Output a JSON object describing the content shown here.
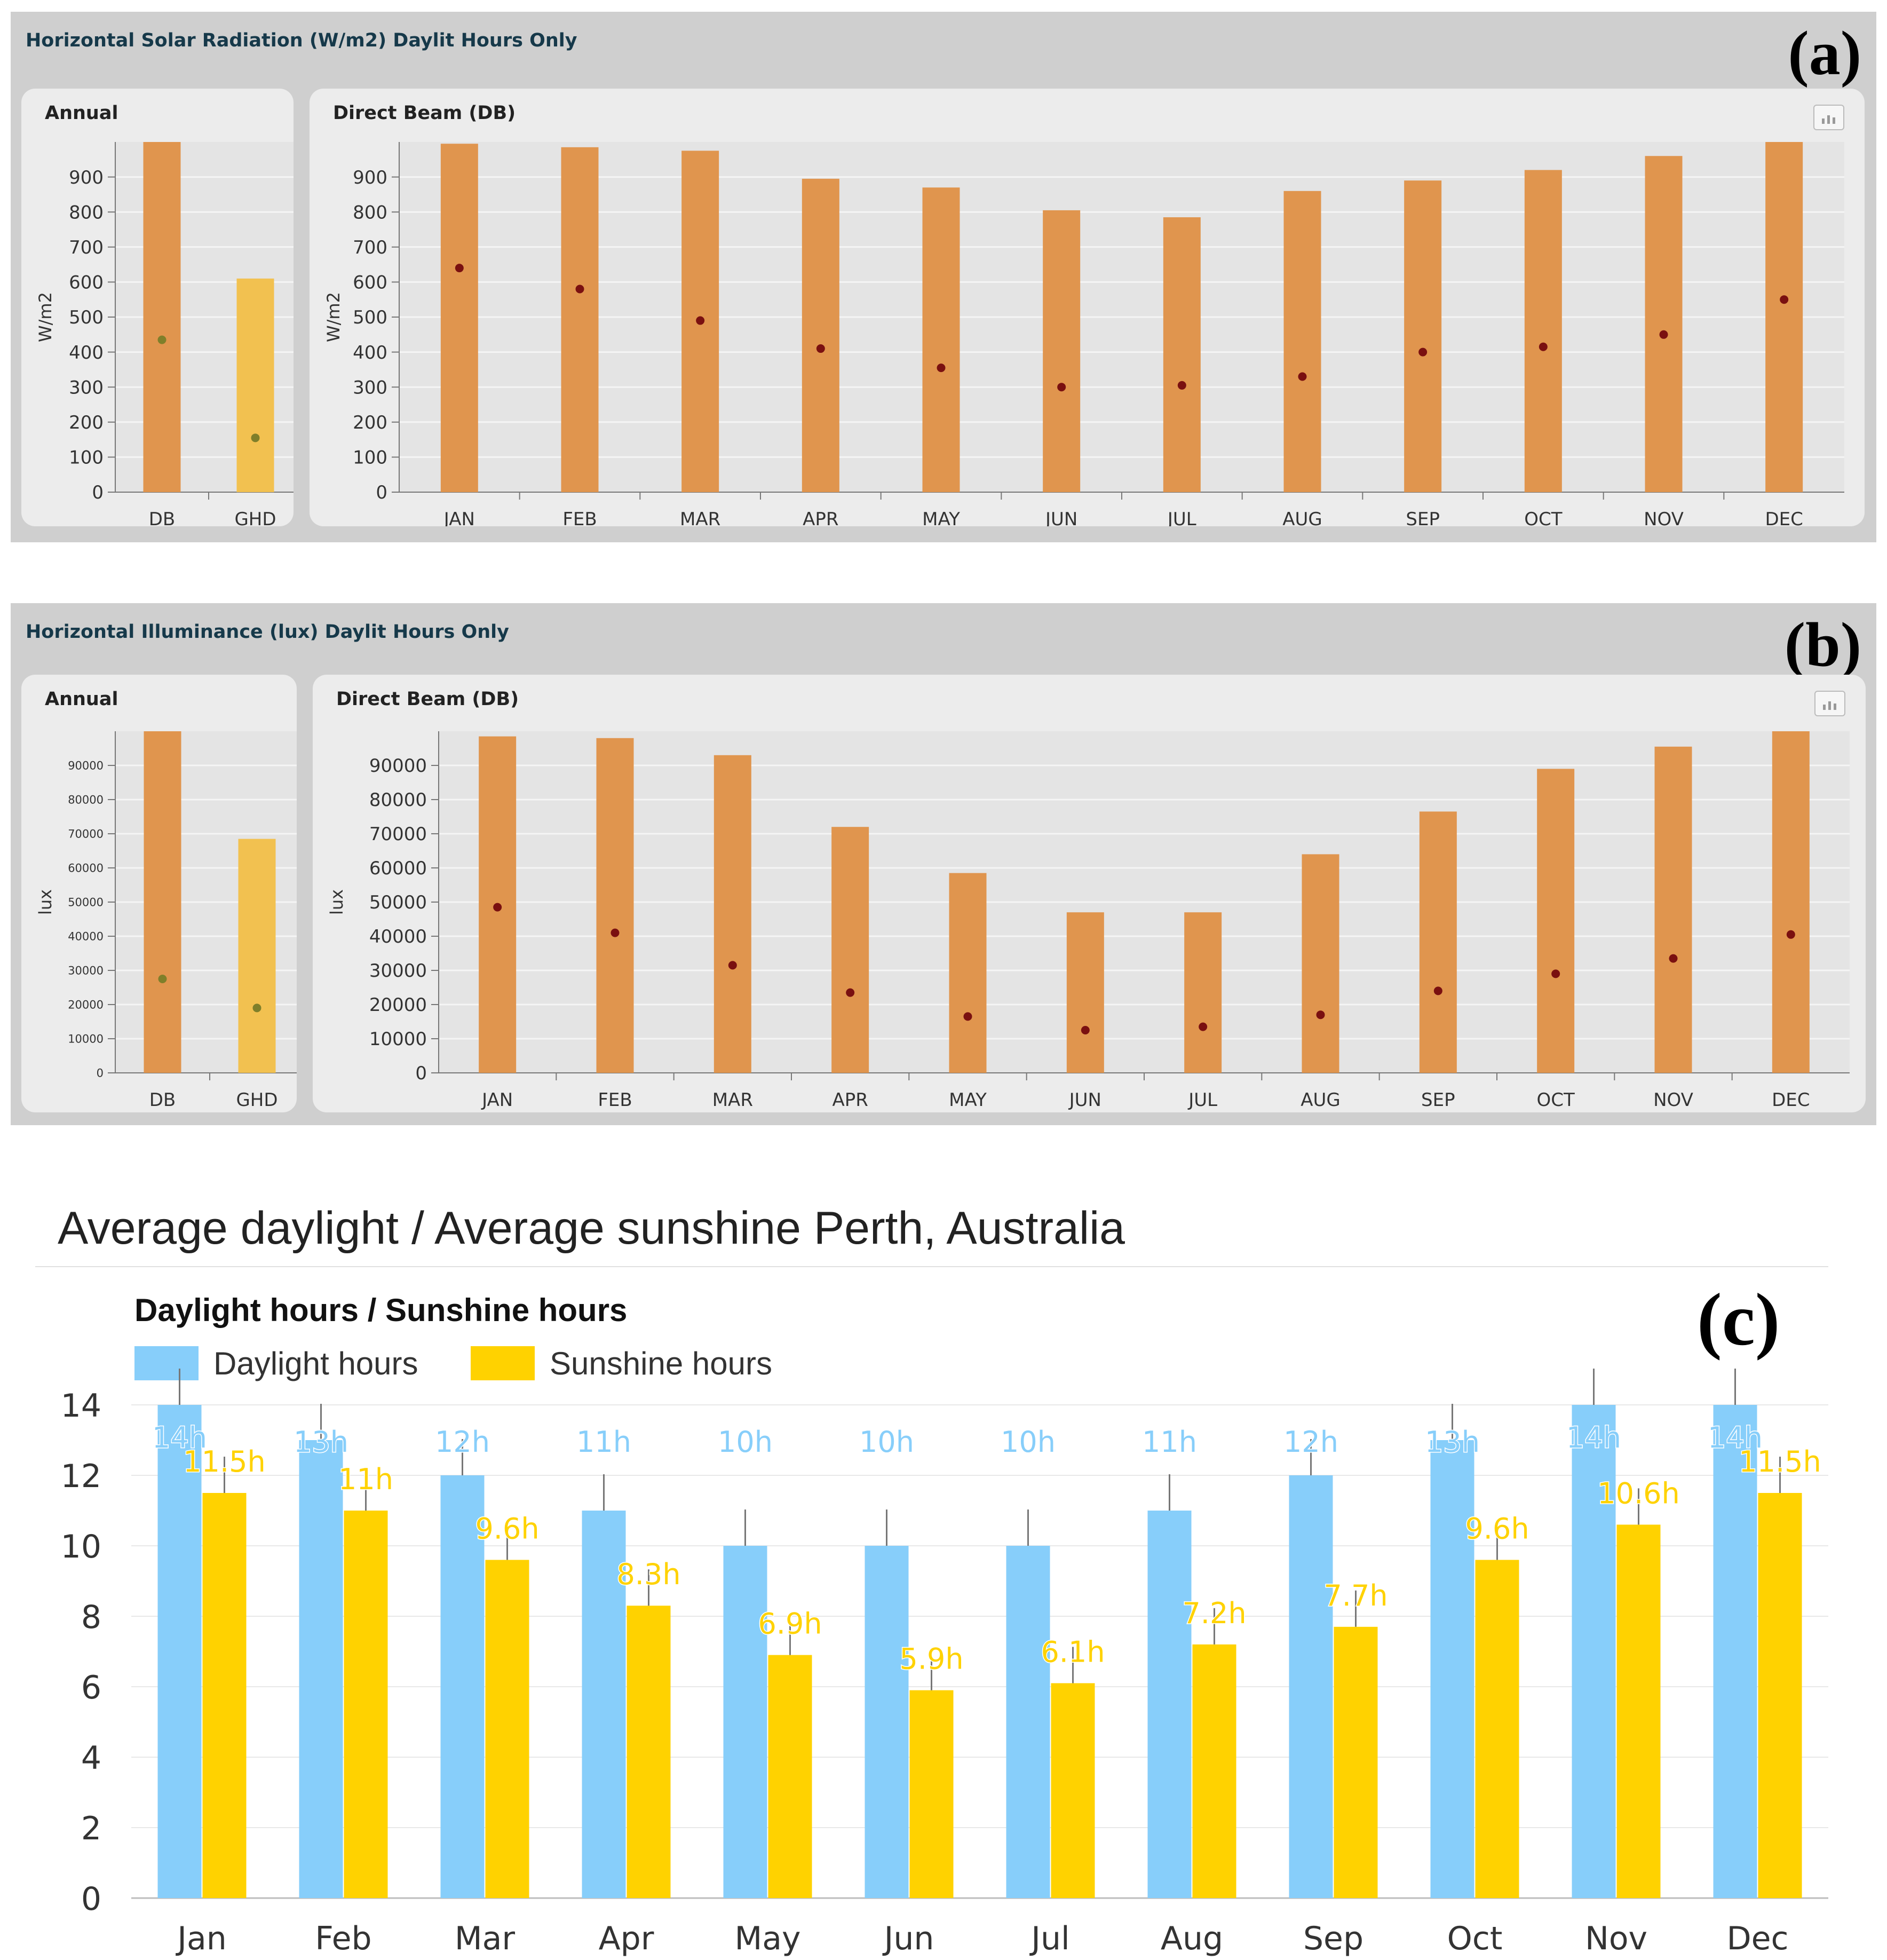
{
  "panel_a": {
    "title": "Horizontal Solar Radiation (W/m2) Daylit Hours Only",
    "label": "(a)",
    "annual_title": "Annual",
    "direct_title": "Direct Beam (DB)"
  },
  "panel_b": {
    "title": "Horizontal Illuminance (lux) Daylit Hours Only",
    "label": "(b)",
    "annual_title": "Annual",
    "direct_title": "Direct Beam (DB)"
  },
  "panel_c": {
    "title": "Average daylight / Average sunshine Perth, Australia",
    "subtitle": "Daylight hours / Sunshine hours",
    "label": "(c)"
  },
  "icons": [
    "chart-options-icon"
  ],
  "colors": {
    "db_bar": "#e0954e",
    "ghd_bar": "#f2c150",
    "marker_dark": "#7a1010",
    "marker_olive": "#7f7f2a",
    "daylight": "#87cefa",
    "sunshine": "#ffd200"
  },
  "chart_data": [
    {
      "id": "a-annual",
      "type": "bar",
      "title": "Annual",
      "ylabel": "W/m2",
      "categories": [
        "DB",
        "GHD"
      ],
      "series": [
        {
          "values": [
            1000,
            610
          ]
        },
        {
          "values": [
            435,
            155
          ]
        }
      ],
      "ylim": [
        0,
        1000
      ],
      "yticks": [
        0,
        100,
        200,
        300,
        400,
        500,
        600,
        700,
        800,
        900
      ],
      "grid": true
    },
    {
      "id": "a-direct",
      "type": "bar",
      "title": "Direct Beam (DB)",
      "ylabel": "W/m2",
      "categories": [
        "JAN",
        "FEB",
        "MAR",
        "APR",
        "MAY",
        "JUN",
        "JUL",
        "AUG",
        "SEP",
        "OCT",
        "NOV",
        "DEC"
      ],
      "series": [
        {
          "values": [
            995,
            985,
            975,
            895,
            870,
            805,
            785,
            860,
            890,
            920,
            960,
            1000
          ]
        },
        {
          "values": [
            640,
            580,
            490,
            410,
            355,
            300,
            305,
            330,
            400,
            415,
            450,
            550
          ]
        }
      ],
      "ylim": [
        0,
        1000
      ],
      "yticks": [
        0,
        100,
        200,
        300,
        400,
        500,
        600,
        700,
        800,
        900
      ],
      "grid": true
    },
    {
      "id": "b-annual",
      "type": "bar",
      "title": "Annual",
      "ylabel": "lux",
      "categories": [
        "DB",
        "GHD"
      ],
      "series": [
        {
          "values": [
            100000,
            68500
          ]
        },
        {
          "values": [
            27500,
            19000
          ]
        }
      ],
      "ylim": [
        0,
        100000
      ],
      "yticks": [
        0,
        10000,
        20000,
        30000,
        40000,
        50000,
        60000,
        70000,
        80000,
        90000
      ],
      "grid": true
    },
    {
      "id": "b-direct",
      "type": "bar",
      "title": "Direct Beam (DB)",
      "ylabel": "lux",
      "categories": [
        "JAN",
        "FEB",
        "MAR",
        "APR",
        "MAY",
        "JUN",
        "JUL",
        "AUG",
        "SEP",
        "OCT",
        "NOV",
        "DEC"
      ],
      "series": [
        {
          "values": [
            98500,
            98000,
            93000,
            72000,
            58500,
            47000,
            47000,
            64000,
            76500,
            89000,
            95500,
            100000
          ]
        },
        {
          "values": [
            48500,
            41000,
            31500,
            23500,
            16500,
            12500,
            13500,
            17000,
            24000,
            29000,
            33500,
            40500
          ]
        }
      ],
      "ylim": [
        0,
        100000
      ],
      "yticks": [
        0,
        10000,
        20000,
        30000,
        40000,
        50000,
        60000,
        70000,
        80000,
        90000
      ],
      "grid": true
    },
    {
      "id": "c-hours",
      "type": "bar",
      "title": "Daylight hours / Sunshine hours",
      "categories": [
        "Jan",
        "Feb",
        "Mar",
        "Apr",
        "May",
        "Jun",
        "Jul",
        "Aug",
        "Sep",
        "Oct",
        "Nov",
        "Dec"
      ],
      "series": [
        {
          "name": "Daylight hours",
          "values": [
            14,
            13,
            12,
            11,
            10,
            10,
            10,
            11,
            12,
            13,
            14,
            14
          ],
          "labels": [
            "14h",
            "13h",
            "12h",
            "11h",
            "10h",
            "10h",
            "10h",
            "11h",
            "12h",
            "13h",
            "14h",
            "14h"
          ]
        },
        {
          "name": "Sunshine hours",
          "values": [
            11.5,
            11,
            9.6,
            8.3,
            6.9,
            5.9,
            6.1,
            7.2,
            7.7,
            9.6,
            10.6,
            11.5
          ],
          "labels": [
            "11.5h",
            "11h",
            "9.6h",
            "8.3h",
            "6.9h",
            "5.9h",
            "6.1h",
            "7.2h",
            "7.7h",
            "9.6h",
            "10.6h",
            "11.5h"
          ]
        }
      ],
      "ylim": [
        0,
        14
      ],
      "yticks": [
        0,
        2,
        4,
        6,
        8,
        10,
        12,
        14
      ],
      "legend": "top-left",
      "grid": true
    }
  ]
}
